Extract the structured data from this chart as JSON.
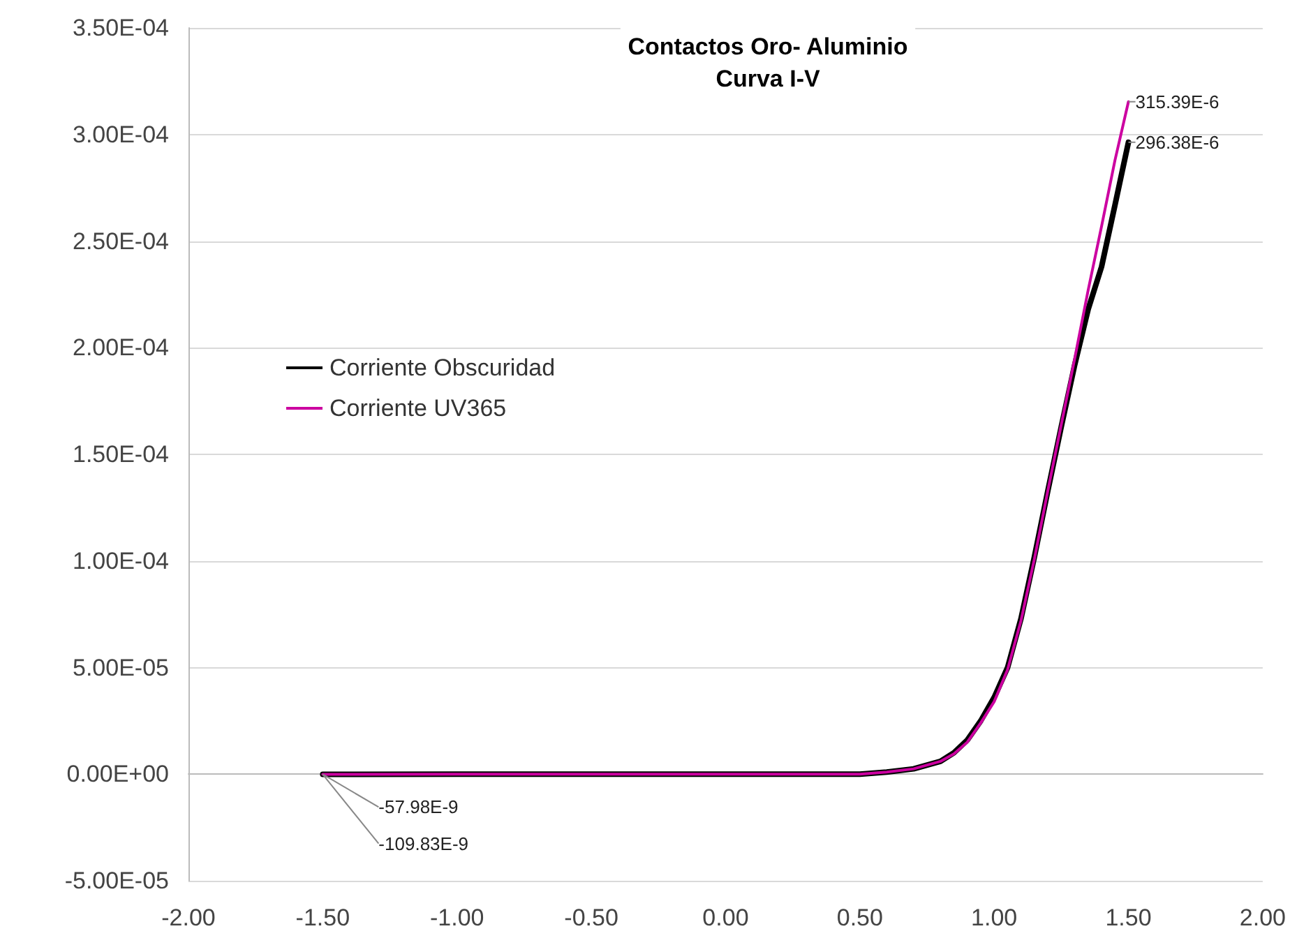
{
  "chart_data": {
    "type": "line",
    "title": "Contactos Oro- Aluminio",
    "subtitle": "Curva I-V",
    "x": [
      -1.5,
      -1.0,
      -0.5,
      0.0,
      0.4,
      0.5,
      0.6,
      0.7,
      0.8,
      0.85,
      0.9,
      0.95,
      1.0,
      1.05,
      1.1,
      1.15,
      1.2,
      1.25,
      1.3,
      1.35,
      1.4,
      1.45,
      1.5
    ],
    "series": [
      {
        "name": "Corriente Obscuridad",
        "color": "#000000",
        "values": [
          -1.0983e-07,
          0,
          0,
          0,
          0,
          0,
          1e-06,
          2.5e-06,
          6e-06,
          1e-05,
          1.6e-05,
          2.5e-05,
          3.6e-05,
          5e-05,
          7.3e-05,
          0.000102,
          0.000133,
          0.000163,
          0.000192,
          0.000218,
          0.000238,
          0.000267,
          0.00029638
        ],
        "value_labels": [
          "-109.83E-9",
          null,
          null,
          null,
          null,
          null,
          null,
          null,
          null,
          null,
          null,
          null,
          null,
          null,
          null,
          null,
          null,
          null,
          null,
          null,
          null,
          null,
          "296.38E-6"
        ]
      },
      {
        "name": "Corriente UV365",
        "color": "#cc00a0",
        "values": [
          -5.798e-08,
          0,
          0,
          0,
          0,
          0,
          1e-06,
          2.5e-06,
          6e-06,
          9.5e-06,
          1.5e-05,
          2.4e-05,
          3.4e-05,
          4.9e-05,
          7.2e-05,
          0.000101,
          0.000133,
          0.000164,
          0.000195,
          0.000227,
          0.000257,
          0.000288,
          0.00031539
        ],
        "value_labels": [
          "-57.98E-9",
          null,
          null,
          null,
          null,
          null,
          null,
          null,
          null,
          null,
          null,
          null,
          null,
          null,
          null,
          null,
          null,
          null,
          null,
          null,
          null,
          null,
          "315.39E-6"
        ]
      }
    ],
    "xlim": [
      -2,
      2
    ],
    "xticks": [
      {
        "value": -2,
        "label": "-2.00"
      },
      {
        "value": -1.5,
        "label": "-1.50"
      },
      {
        "value": -1,
        "label": "-1.00"
      },
      {
        "value": -0.5,
        "label": "-0.50"
      },
      {
        "value": 0,
        "label": "0.00"
      },
      {
        "value": 0.5,
        "label": "0.50"
      },
      {
        "value": 1,
        "label": "1.00"
      },
      {
        "value": 1.5,
        "label": "1.50"
      },
      {
        "value": 2,
        "label": "2.00"
      }
    ],
    "ylim": [
      -5e-05,
      0.00035
    ],
    "yticks": [
      {
        "value": -5e-05,
        "label": "-5.00E-05"
      },
      {
        "value": 0,
        "label": "0.00E+00"
      },
      {
        "value": 5e-05,
        "label": "5.00E-05"
      },
      {
        "value": 0.0001,
        "label": "1.00E-04"
      },
      {
        "value": 0.00015,
        "label": "1.50E-04"
      },
      {
        "value": 0.0002,
        "label": "2.00E-04"
      },
      {
        "value": 0.00025,
        "label": "2.50E-04"
      },
      {
        "value": 0.0003,
        "label": "3.00E-04"
      },
      {
        "value": 0.00035,
        "label": "3.50E-04"
      }
    ],
    "grid": "y",
    "legend": "left",
    "marker": "none",
    "line_style": "solid"
  }
}
